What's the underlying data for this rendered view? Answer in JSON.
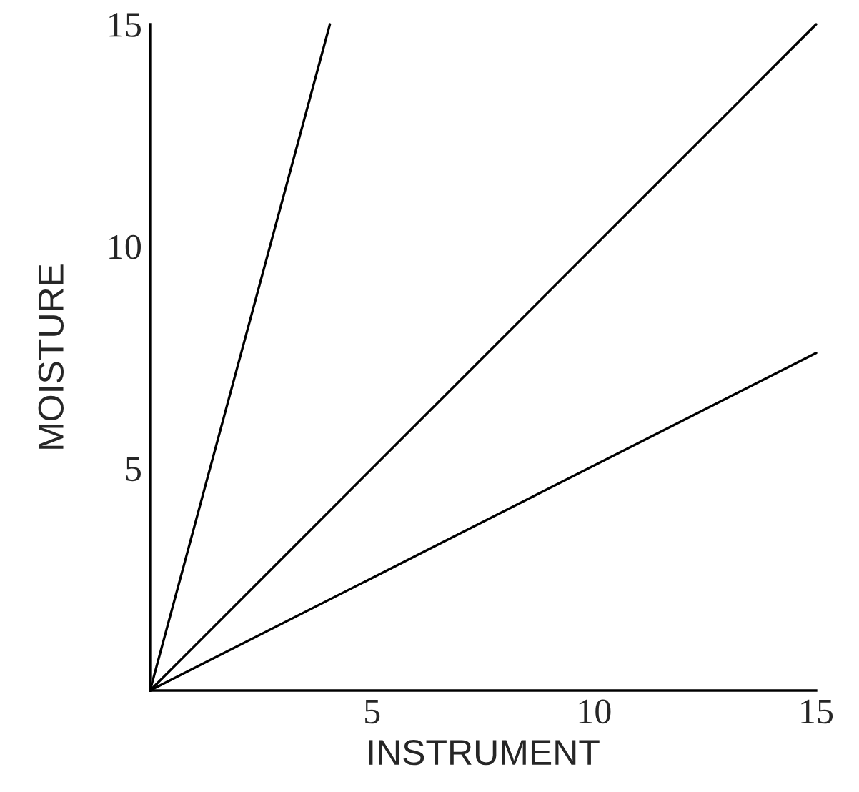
{
  "chart_data": {
    "type": "line",
    "xlabel": "INSTRUMENT",
    "ylabel": "MOISTURE",
    "series": [
      {
        "color": "#000000",
        "x": [
          0,
          4.05
        ],
        "values": [
          0,
          15
        ]
      },
      {
        "color": "#000000",
        "x": [
          0,
          15
        ],
        "values": [
          0,
          15
        ]
      },
      {
        "color": "#000000",
        "x": [
          0,
          15
        ],
        "values": [
          0,
          7.6
        ]
      }
    ],
    "xlim": [
      0,
      15
    ],
    "ylim": [
      0,
      15
    ],
    "xticks": [
      5,
      10,
      15
    ],
    "yticks": [
      5,
      10,
      15
    ],
    "grid": false,
    "legend": false,
    "marker": "none",
    "line_style": "solid"
  }
}
